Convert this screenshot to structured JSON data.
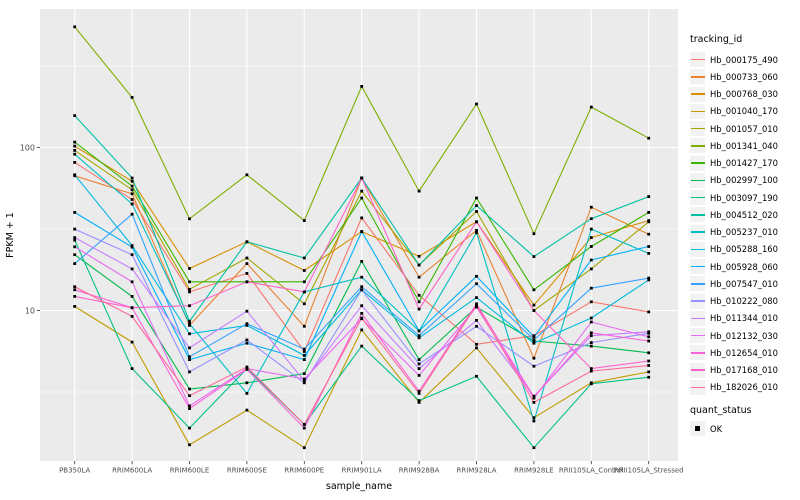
{
  "chart_data": {
    "type": "line",
    "title": "",
    "xlabel": "sample_name",
    "ylabel": "FPKM + 1",
    "y_scale": "log10",
    "ylim": [
      1.25,
      700
    ],
    "y_ticks": [
      10,
      100
    ],
    "y_tick_labels": [
      "10",
      "100"
    ],
    "y_minor_gridlines": [
      3.162,
      31.623,
      316.23
    ],
    "grid": true,
    "legend_position": "right",
    "panel_bg": "#EBEBEB",
    "grid_color": "#FFFFFF",
    "tick_label_color": "#4D4D4D",
    "axis_title_color": "#000000",
    "point_color": "#000000",
    "point_shape": "filled-square",
    "legend_key_bg": "#F2F2F2",
    "legend_title": "tracking_id",
    "shape_legend_title": "quant_status",
    "shape_legend_items": [
      {
        "label": "OK",
        "shape": "filled-square",
        "color": "#000000"
      }
    ],
    "categories": [
      "PB350LA",
      "RRIM600LA",
      "RRIM600LE",
      "RRIM600SE",
      "RRIM600PE",
      "RRIM901LA",
      "RRIM928BA",
      "RRIM928LA",
      "RRIM928LE",
      "RRII105LA_Control",
      "RRII105LA_Stressed"
    ],
    "series": [
      {
        "name": "Hb_000175_490",
        "color": "#F8766D",
        "values": [
          81,
          48,
          13.0,
          16.9,
          5.6,
          37,
          12.4,
          6.2,
          7.0,
          11.3,
          9.8
        ]
      },
      {
        "name": "Hb_000733_060",
        "color": "#EA8331",
        "values": [
          67,
          52,
          8.1,
          19.4,
          8.0,
          65,
          16.0,
          31,
          5.1,
          43,
          29.4
        ]
      },
      {
        "name": "Hb_000768_030",
        "color": "#D89000",
        "values": [
          102,
          62,
          18.1,
          26.4,
          17.6,
          30.5,
          21.5,
          35,
          10.8,
          28,
          35.6
        ]
      },
      {
        "name": "Hb_001040_170",
        "color": "#C09B00",
        "values": [
          10.6,
          6.4,
          1.5,
          2.45,
          1.44,
          7.6,
          2.73,
          5.9,
          2.2,
          3.6,
          4.2
        ]
      },
      {
        "name": "Hb_001057_010",
        "color": "#A3A500",
        "values": [
          96,
          55,
          13.5,
          21.0,
          11.0,
          54,
          19.0,
          40.5,
          10.0,
          18,
          35.0
        ]
      },
      {
        "name": "Hb_001341_040",
        "color": "#7CAE00",
        "values": [
          550,
          203,
          36.5,
          68,
          35.6,
          237,
          54,
          185,
          29.6,
          177,
          114
        ]
      },
      {
        "name": "Hb_001427_170",
        "color": "#39B600",
        "values": [
          108,
          58,
          15.0,
          15.0,
          15.0,
          49,
          11.3,
          49,
          13.4,
          24.7,
          40
        ]
      },
      {
        "name": "Hb_002997_100",
        "color": "#00BB4E",
        "values": [
          22,
          12.2,
          3.3,
          3.6,
          4.1,
          20,
          5.0,
          10.5,
          6.5,
          6.05,
          5.5
        ]
      },
      {
        "name": "Hb_003097_190",
        "color": "#00C087",
        "values": [
          27,
          4.4,
          1.9,
          4.4,
          2.0,
          6.05,
          2.8,
          3.95,
          1.44,
          3.55,
          3.9
        ]
      },
      {
        "name": "Hb_004512_020",
        "color": "#00C1A3",
        "values": [
          157,
          65,
          8.6,
          26.4,
          21.0,
          65,
          19.0,
          44,
          21.4,
          36.6,
          50
        ]
      },
      {
        "name": "Hb_005237_010",
        "color": "#00BFC4",
        "values": [
          91,
          45,
          8.3,
          3.1,
          13.0,
          16.0,
          7.5,
          30.0,
          2.1,
          31.6,
          22.4
        ]
      },
      {
        "name": "Hb_005288_160",
        "color": "#00BAE0",
        "values": [
          68,
          25,
          7.2,
          8.1,
          5.3,
          13.4,
          6.8,
          12.0,
          6.3,
          9.0,
          15.4
        ]
      },
      {
        "name": "Hb_005928_060",
        "color": "#00B0F6",
        "values": [
          40,
          24.5,
          5.0,
          6.3,
          5.0,
          30.5,
          7.5,
          16.2,
          6.9,
          20.4,
          24.7
        ]
      },
      {
        "name": "Hb_007547_010",
        "color": "#35A2FF",
        "values": [
          19.4,
          39,
          5.2,
          8.3,
          5.8,
          14.0,
          7.0,
          14.6,
          6.6,
          13.7,
          15.8
        ]
      },
      {
        "name": "Hb_010222_080",
        "color": "#9590FF",
        "values": [
          31.6,
          22,
          4.2,
          6.6,
          3.6,
          13.4,
          4.7,
          8.0,
          4.55,
          6.35,
          7.25
        ]
      },
      {
        "name": "Hb_011344_010",
        "color": "#C77CFF",
        "values": [
          28,
          18,
          5.9,
          9.9,
          3.7,
          10.7,
          4.4,
          8.7,
          2.98,
          7.0,
          7.4
        ]
      },
      {
        "name": "Hb_012132_030",
        "color": "#E76BF3",
        "values": [
          24.6,
          15,
          2.6,
          4.4,
          3.8,
          8.9,
          4.0,
          10.5,
          2.9,
          8.5,
          6.9
        ]
      },
      {
        "name": "Hb_012654_010",
        "color": "#FA62DB",
        "values": [
          13.4,
          10.4,
          2.5,
          4.35,
          1.9,
          9.6,
          3.2,
          11.0,
          2.95,
          7.3,
          6.5
        ]
      },
      {
        "name": "Hb_017168_010",
        "color": "#FF61CC",
        "values": [
          12.2,
          10.4,
          10.7,
          15.0,
          13.0,
          65,
          10.2,
          35,
          10.0,
          4.4,
          4.9
        ]
      },
      {
        "name": "Hb_182026_010",
        "color": "#FF6A98",
        "values": [
          14.0,
          9.2,
          3.0,
          4.5,
          2.0,
          9.0,
          3.1,
          10.8,
          2.73,
          4.25,
          4.6
        ]
      }
    ]
  }
}
